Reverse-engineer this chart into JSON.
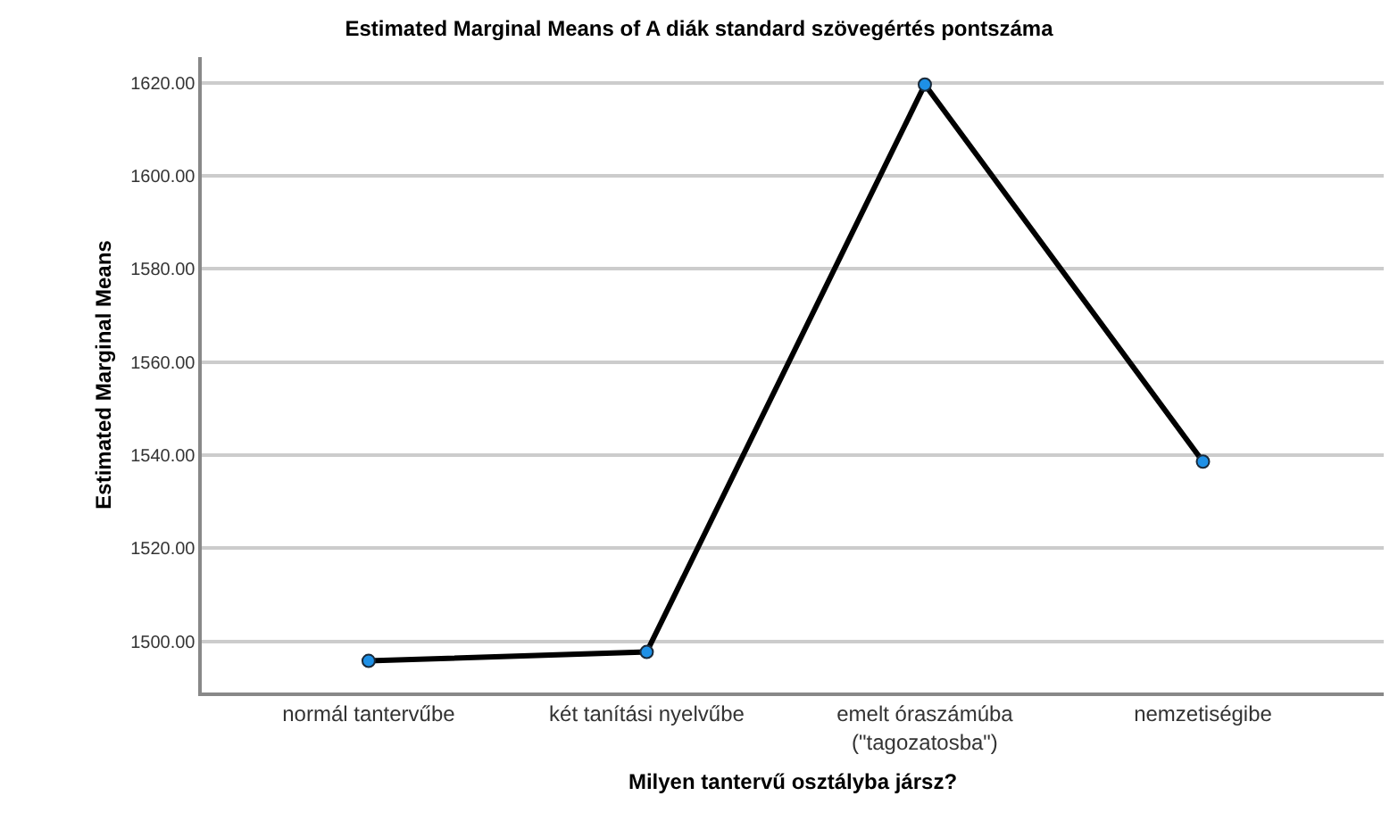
{
  "chart_data": {
    "type": "line",
    "title": "Estimated Marginal Means of A diák standard szövegértés pontszáma",
    "xlabel": "Milyen tantervű osztályba jársz?",
    "ylabel": "Estimated Marginal Means",
    "categories": [
      "normál tantervűbe",
      "két tanítási nyelvűbe",
      "emelt óraszámúba\n(\"tagozatosba\")",
      "nemzetiségibe"
    ],
    "series": [
      {
        "color": "#000000",
        "values": [
          1495.8,
          1497.7,
          1619.6,
          1538.6
        ]
      }
    ],
    "marker": "circle",
    "line_style": "solid",
    "grid": "y",
    "ylim": [
      1489,
      1625.5
    ],
    "yticks": [
      {
        "value": 1500,
        "label": "1500.00"
      },
      {
        "value": 1520,
        "label": "1520.00"
      },
      {
        "value": 1540,
        "label": "1540.00"
      },
      {
        "value": 1560,
        "label": "1560.00"
      },
      {
        "value": 1580,
        "label": "1580.00"
      },
      {
        "value": 1600,
        "label": "1600.00"
      },
      {
        "value": 1620,
        "label": "1620.00"
      }
    ]
  }
}
